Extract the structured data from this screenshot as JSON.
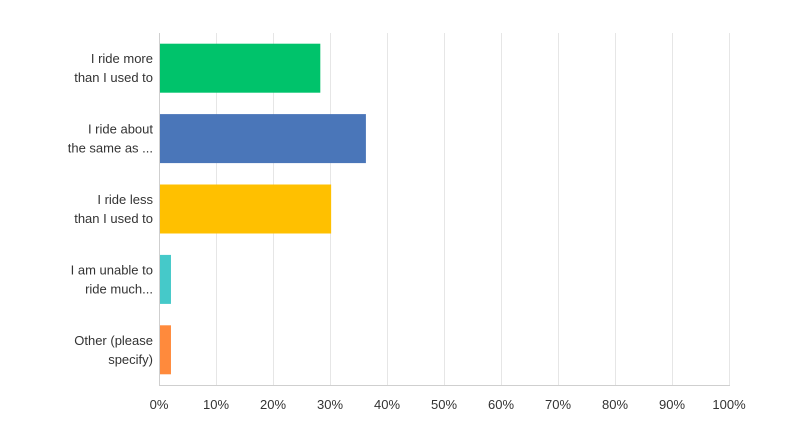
{
  "chart_data": {
    "type": "bar",
    "orientation": "horizontal",
    "categories": [
      [
        "I ride more",
        "than I used to"
      ],
      [
        "I ride about",
        "the same as ..."
      ],
      [
        "I ride less",
        "than I used to"
      ],
      [
        "I am unable to",
        "ride much..."
      ],
      [
        "Other (please",
        "specify)"
      ]
    ],
    "values": [
      28.3,
      36.3,
      30.2,
      2.1,
      2.1
    ],
    "colors": [
      "#00c36b",
      "#4a76b9",
      "#ffc000",
      "#45c9c9",
      "#ff8a3c"
    ],
    "xlim": [
      0,
      100
    ],
    "x_ticks": [
      "0%",
      "10%",
      "20%",
      "30%",
      "40%",
      "50%",
      "60%",
      "70%",
      "80%",
      "90%",
      "100%"
    ],
    "grid": true,
    "legend": "none",
    "title": "",
    "xlabel": "",
    "ylabel": ""
  }
}
